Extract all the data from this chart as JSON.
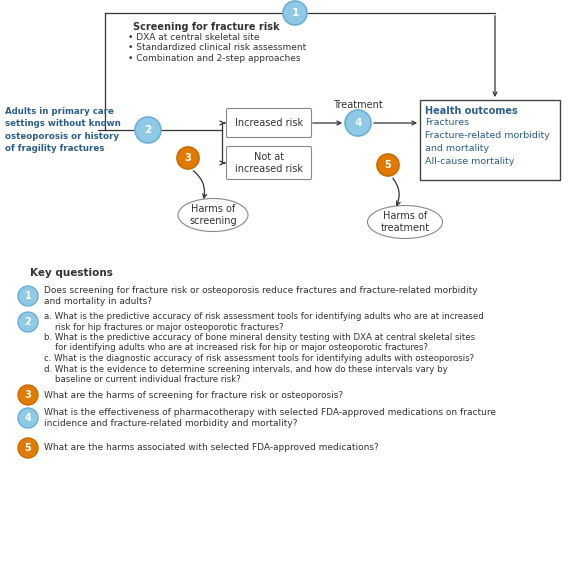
{
  "bg_color": "#ffffff",
  "diagram": {
    "population_text": "Adults in primary care\nsettings without known\nosteoporosis or history\nof fragility fractures",
    "screening_title": "Screening for fracture risk",
    "screening_bullets": [
      "• DXA at central skeletal site",
      "• Standardized clinical risk assessment",
      "• Combination and 2-step approaches"
    ],
    "increased_risk_text": "Increased risk",
    "not_increased_risk_text": "Not at\nincreased risk",
    "treatment_label": "Treatment",
    "harms_screening_text": "Harms of\nscreening",
    "harms_treatment_text": "Harms of\ntreatment",
    "health_outcomes_title": "Health outcomes",
    "health_outcomes_items": [
      "Fractures",
      "Fracture-related morbidity",
      "and mortality",
      "All-cause mortality"
    ]
  },
  "colors": {
    "blue_circle": "#8ecae6",
    "blue_circle_edge": "#6baed6",
    "orange_circle": "#e07b00",
    "orange_circle_edge": "#c96a00",
    "box_border": "#888888",
    "arrow_color": "#333333",
    "text_dark": "#333333",
    "outcomes_border": "#444444",
    "text_blue": "#2c5f8a",
    "screening_text": "#333333"
  },
  "key_questions": {
    "title": "Key questions",
    "q1_text": "Does screening for fracture risk or osteoporosis reduce fractures and fracture-related morbidity\nand mortality in adults?",
    "q2_parts": [
      "a. What is the predictive accuracy of risk assessment tools for identifying adults who are at increased",
      "    risk for hip fractures or major osteoporotic fractures?",
      "b. What is the predictive accuracy of bone mineral density testing with DXA at central skeletal sites",
      "    for identifying adults who are at increased risk for hip or major osteoporotic fractures?",
      "c. What is the diagnostic accuracy of risk assessment tools for identifying adults with osteoporosis?",
      "d. What is the evidence to determine screening intervals, and how do these intervals vary by",
      "    baseline or current individual fracture risk?"
    ],
    "q3_text": "What are the harms of screening for fracture risk or osteoporosis?",
    "q4_text": "What is the effectiveness of pharmacotherapy with selected FDA-approved medications on fracture\nincidence and fracture-related morbidity and mortality?",
    "q5_text": "What are the harms associated with selected FDA-approved medications?"
  }
}
